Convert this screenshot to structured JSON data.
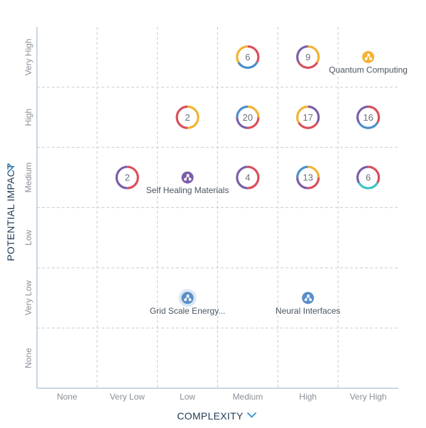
{
  "chart_data": {
    "type": "scatter",
    "title": "",
    "xlabel": "COMPLEXITY",
    "ylabel": "POTENTIAL IMPACT",
    "x_categories": [
      "None",
      "Very Low",
      "Low",
      "Medium",
      "High",
      "Very High"
    ],
    "y_categories": [
      "None",
      "Very Low",
      "Low",
      "Medium",
      "High",
      "Very High"
    ],
    "grid": true,
    "clusters": [
      {
        "x": "Medium",
        "y": "Very High",
        "count": 6,
        "colors": [
          "#d94f5c",
          "#4a8fc9",
          "#f2b233"
        ]
      },
      {
        "x": "High",
        "y": "Very High",
        "count": 9,
        "colors": [
          "#f2b233",
          "#d94f5c",
          "#7b5ea7"
        ]
      },
      {
        "x": "Low",
        "y": "High",
        "count": 2,
        "colors": [
          "#f2b233",
          "#d94f5c"
        ]
      },
      {
        "x": "Medium",
        "y": "High",
        "count": 20,
        "colors": [
          "#f2b233",
          "#d94f5c",
          "#7b5ea7",
          "#4a8fc9"
        ]
      },
      {
        "x": "High",
        "y": "High",
        "count": 17,
        "colors": [
          "#7b5ea7",
          "#d94f5c",
          "#f2b233"
        ]
      },
      {
        "x": "Very High",
        "y": "High",
        "count": 16,
        "colors": [
          "#d94f5c",
          "#4a8fc9",
          "#7b5ea7"
        ]
      },
      {
        "x": "Very Low",
        "y": "Medium",
        "count": 2,
        "colors": [
          "#d94f5c",
          "#7b5ea7"
        ]
      },
      {
        "x": "Medium",
        "y": "Medium",
        "count": 4,
        "colors": [
          "#d94f5c",
          "#7b5ea7"
        ]
      },
      {
        "x": "High",
        "y": "Medium",
        "count": 13,
        "colors": [
          "#f2b233",
          "#d94f5c",
          "#7b5ea7",
          "#4a8fc9"
        ]
      },
      {
        "x": "Very High",
        "y": "Medium",
        "count": 6,
        "colors": [
          "#d94f5c",
          "#3cc4c4",
          "#7b5ea7"
        ]
      }
    ],
    "points": [
      {
        "label": "Quantum Computing",
        "x": "Very High",
        "y": "Very High",
        "color": "#f2b233"
      },
      {
        "label": "Self Healing Materials",
        "x": "Low",
        "y": "Medium",
        "color": "#7b5ea7"
      },
      {
        "label": "Grid Scale Energy...",
        "x": "Low",
        "y": "Very Low",
        "color": "#5b8fc7",
        "highlighted": true
      },
      {
        "label": "Neural Interfaces",
        "x": "High",
        "y": "Very Low",
        "color": "#5b8fc7"
      }
    ],
    "colors": {
      "grid": "#c9cdd2",
      "axis": "#b9c8d8",
      "accent": "#2a8fd4",
      "highlight_halo": "#dbe7f4"
    }
  }
}
